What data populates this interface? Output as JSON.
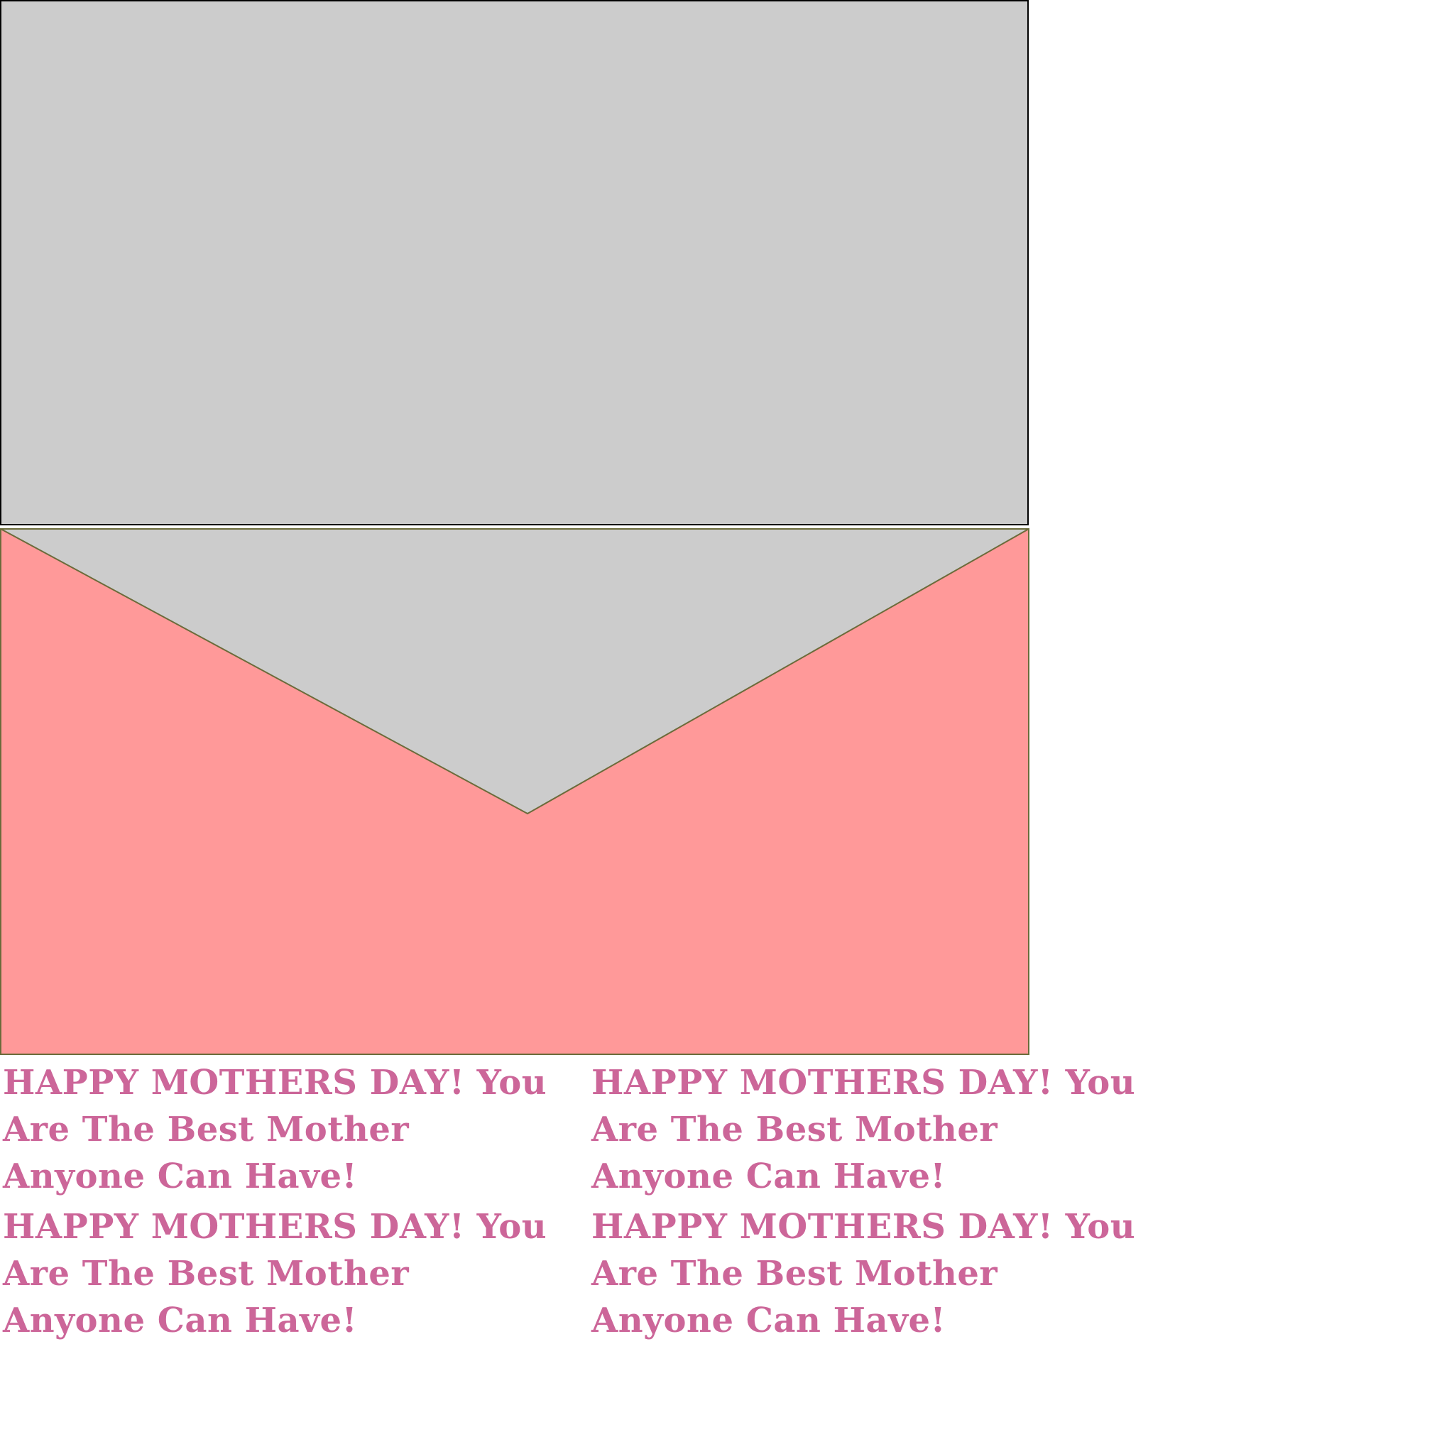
{
  "colors": {
    "card_front": "#cccccc",
    "border": "#000000",
    "envelope_body": "#ff9999",
    "envelope_flap": "#cccccc",
    "envelope_stroke": "#6b6b3a",
    "text": "#cc6699"
  },
  "messages": [
    {
      "line1": "HAPPY MOTHERS DAY! You",
      "line2": "Are The Best Mother",
      "line3": "Anyone Can Have!"
    },
    {
      "line1": "HAPPY MOTHERS DAY! You",
      "line2": "Are The Best Mother",
      "line3": "Anyone Can Have!"
    },
    {
      "line1": "HAPPY MOTHERS DAY! You",
      "line2": "Are The Best Mother",
      "line3": "Anyone Can Have!"
    },
    {
      "line1": "HAPPY MOTHERS DAY! You",
      "line2": "Are The Best Mother",
      "line3": "Anyone Can Have!"
    }
  ]
}
